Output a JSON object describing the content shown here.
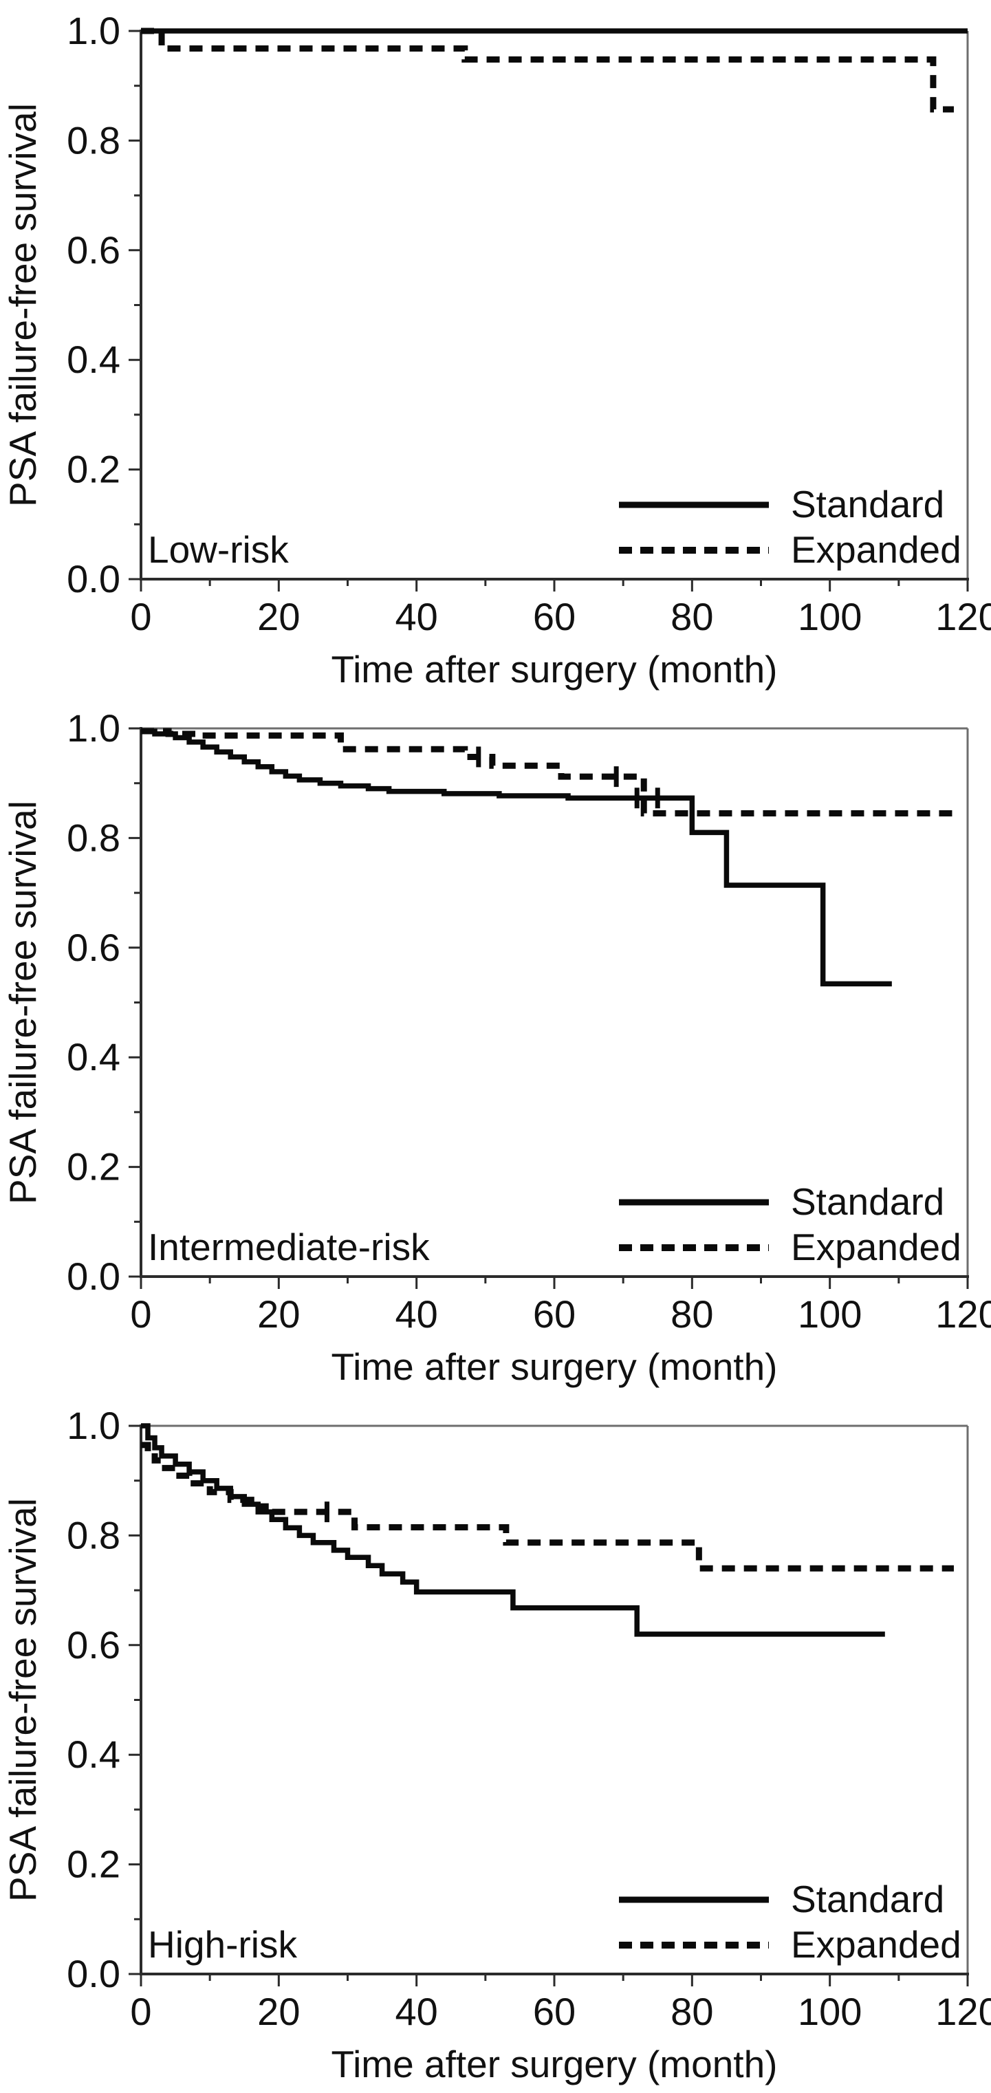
{
  "figure": {
    "description": "Three stacked Kaplan-Meier survival plots",
    "xlabel": "Time after surgery (month)",
    "ylabel": "PSA failure-free survival"
  },
  "colors": {
    "curve": "#0a0a0a",
    "frame": "#6e6e6e",
    "axis": "#2b2b2b",
    "text": "#111111",
    "background": "#ffffff"
  },
  "chart_data": [
    {
      "type": "line",
      "subtype": "kaplan-meier-step",
      "panel_label": "Low-risk",
      "xlabel": "Time after surgery (month)",
      "ylabel": "PSA failure-free survival",
      "xlim": [
        0,
        120
      ],
      "ylim": [
        0.0,
        1.0
      ],
      "xticks": [
        0,
        20,
        40,
        60,
        80,
        100,
        120
      ],
      "xticklabels": [
        "0",
        "20",
        "40",
        "60",
        "80",
        "100",
        "120"
      ],
      "xminor": [
        10,
        30,
        50,
        70,
        90,
        110
      ],
      "yticks": [
        0.0,
        0.2,
        0.4,
        0.6,
        0.8,
        1.0
      ],
      "yticklabels": [
        "0.0",
        "0.2",
        "0.4",
        "0.6",
        "0.8",
        "1.0"
      ],
      "yminor": [
        0.1,
        0.3,
        0.5,
        0.7,
        0.9
      ],
      "grid": false,
      "legend": {
        "position": "lower right",
        "entries": [
          {
            "label": "Standard",
            "style": "solid"
          },
          {
            "label": "Expanded",
            "style": "dashed"
          }
        ]
      },
      "series": [
        {
          "name": "Standard",
          "style": "solid",
          "steps": [
            [
              0,
              1.0
            ],
            [
              120,
              1.0
            ]
          ],
          "censors": []
        },
        {
          "name": "Expanded",
          "style": "dashed",
          "steps": [
            [
              0,
              1.0
            ],
            [
              3,
              0.968
            ],
            [
              47,
              0.948
            ],
            [
              115,
              0.857
            ],
            [
              118,
              0.857
            ]
          ],
          "censors": []
        }
      ]
    },
    {
      "type": "line",
      "subtype": "kaplan-meier-step",
      "panel_label": "Intermediate-risk",
      "xlabel": "Time after surgery (month)",
      "ylabel": "PSA failure-free survival",
      "xlim": [
        0,
        120
      ],
      "ylim": [
        0.0,
        1.0
      ],
      "xticks": [
        0,
        20,
        40,
        60,
        80,
        100,
        120
      ],
      "xticklabels": [
        "0",
        "20",
        "40",
        "60",
        "80",
        "100",
        "120"
      ],
      "xminor": [
        10,
        30,
        50,
        70,
        90,
        110
      ],
      "yticks": [
        0.0,
        0.2,
        0.4,
        0.6,
        0.8,
        1.0
      ],
      "yticklabels": [
        "0.0",
        "0.2",
        "0.4",
        "0.6",
        "0.8",
        "1.0"
      ],
      "yminor": [
        0.1,
        0.3,
        0.5,
        0.7,
        0.9
      ],
      "grid": false,
      "legend": {
        "position": "lower right",
        "entries": [
          {
            "label": "Standard",
            "style": "solid"
          },
          {
            "label": "Expanded",
            "style": "dashed"
          }
        ]
      },
      "series": [
        {
          "name": "Standard",
          "style": "solid",
          "steps": [
            [
              0,
              0.995
            ],
            [
              2,
              0.99
            ],
            [
              5,
              0.983
            ],
            [
              7,
              0.975
            ],
            [
              9,
              0.966
            ],
            [
              11,
              0.957
            ],
            [
              13,
              0.948
            ],
            [
              15,
              0.939
            ],
            [
              17,
              0.93
            ],
            [
              19,
              0.921
            ],
            [
              21,
              0.913
            ],
            [
              23,
              0.906
            ],
            [
              26,
              0.9
            ],
            [
              29,
              0.895
            ],
            [
              33,
              0.89
            ],
            [
              36,
              0.885
            ],
            [
              44,
              0.881
            ],
            [
              52,
              0.877
            ],
            [
              62,
              0.873
            ],
            [
              80,
              0.81
            ],
            [
              85,
              0.714
            ],
            [
              99,
              0.534
            ],
            [
              109,
              0.534
            ]
          ],
          "censors": [
            [
              72,
              0.873
            ],
            [
              75,
              0.873
            ]
          ]
        },
        {
          "name": "Expanded",
          "style": "dashed",
          "steps": [
            [
              0,
              0.995
            ],
            [
              4,
              0.99
            ],
            [
              8,
              0.987
            ],
            [
              29,
              0.962
            ],
            [
              47,
              0.948
            ],
            [
              51,
              0.932
            ],
            [
              61,
              0.912
            ],
            [
              73,
              0.845
            ],
            [
              118,
              0.845
            ]
          ],
          "censors": [
            [
              49,
              0.948
            ],
            [
              69,
              0.912
            ]
          ]
        }
      ]
    },
    {
      "type": "line",
      "subtype": "kaplan-meier-step",
      "panel_label": "High-risk",
      "xlabel": "Time after surgery (month)",
      "ylabel": "PSA failure-free survival",
      "xlim": [
        0,
        120
      ],
      "ylim": [
        0.0,
        1.0
      ],
      "xticks": [
        0,
        20,
        40,
        60,
        80,
        100,
        120
      ],
      "xticklabels": [
        "0",
        "20",
        "40",
        "60",
        "80",
        "100",
        "120"
      ],
      "xminor": [
        10,
        30,
        50,
        70,
        90,
        110
      ],
      "yticks": [
        0.0,
        0.2,
        0.4,
        0.6,
        0.8,
        1.0
      ],
      "yticklabels": [
        "0.0",
        "0.2",
        "0.4",
        "0.6",
        "0.8",
        "1.0"
      ],
      "yminor": [
        0.1,
        0.3,
        0.5,
        0.7,
        0.9
      ],
      "grid": false,
      "legend": {
        "position": "lower right",
        "entries": [
          {
            "label": "Standard",
            "style": "solid"
          },
          {
            "label": "Expanded",
            "style": "dashed"
          }
        ]
      },
      "series": [
        {
          "name": "Standard",
          "style": "solid",
          "steps": [
            [
              0,
              1.0
            ],
            [
              1,
              0.978
            ],
            [
              2,
              0.96
            ],
            [
              3,
              0.945
            ],
            [
              5,
              0.93
            ],
            [
              7,
              0.916
            ],
            [
              9,
              0.9
            ],
            [
              11,
              0.886
            ],
            [
              13,
              0.871
            ],
            [
              15,
              0.857
            ],
            [
              17,
              0.843
            ],
            [
              19,
              0.829
            ],
            [
              21,
              0.814
            ],
            [
              23,
              0.8
            ],
            [
              25,
              0.787
            ],
            [
              28,
              0.773
            ],
            [
              30,
              0.76
            ],
            [
              33,
              0.745
            ],
            [
              35,
              0.73
            ],
            [
              38,
              0.715
            ],
            [
              40,
              0.697
            ],
            [
              54,
              0.668
            ],
            [
              72,
              0.62
            ],
            [
              108,
              0.62
            ]
          ],
          "censors": []
        },
        {
          "name": "Expanded",
          "style": "dashed",
          "steps": [
            [
              0,
              0.965
            ],
            [
              1,
              0.951
            ],
            [
              2,
              0.937
            ],
            [
              3,
              0.923
            ],
            [
              5,
              0.909
            ],
            [
              7,
              0.895
            ],
            [
              10,
              0.879
            ],
            [
              13,
              0.865
            ],
            [
              16,
              0.853
            ],
            [
              19,
              0.843
            ],
            [
              31,
              0.815
            ],
            [
              53,
              0.787
            ],
            [
              81,
              0.74
            ],
            [
              118,
              0.74
            ]
          ],
          "censors": [
            [
              27,
              0.843
            ]
          ]
        }
      ]
    }
  ]
}
